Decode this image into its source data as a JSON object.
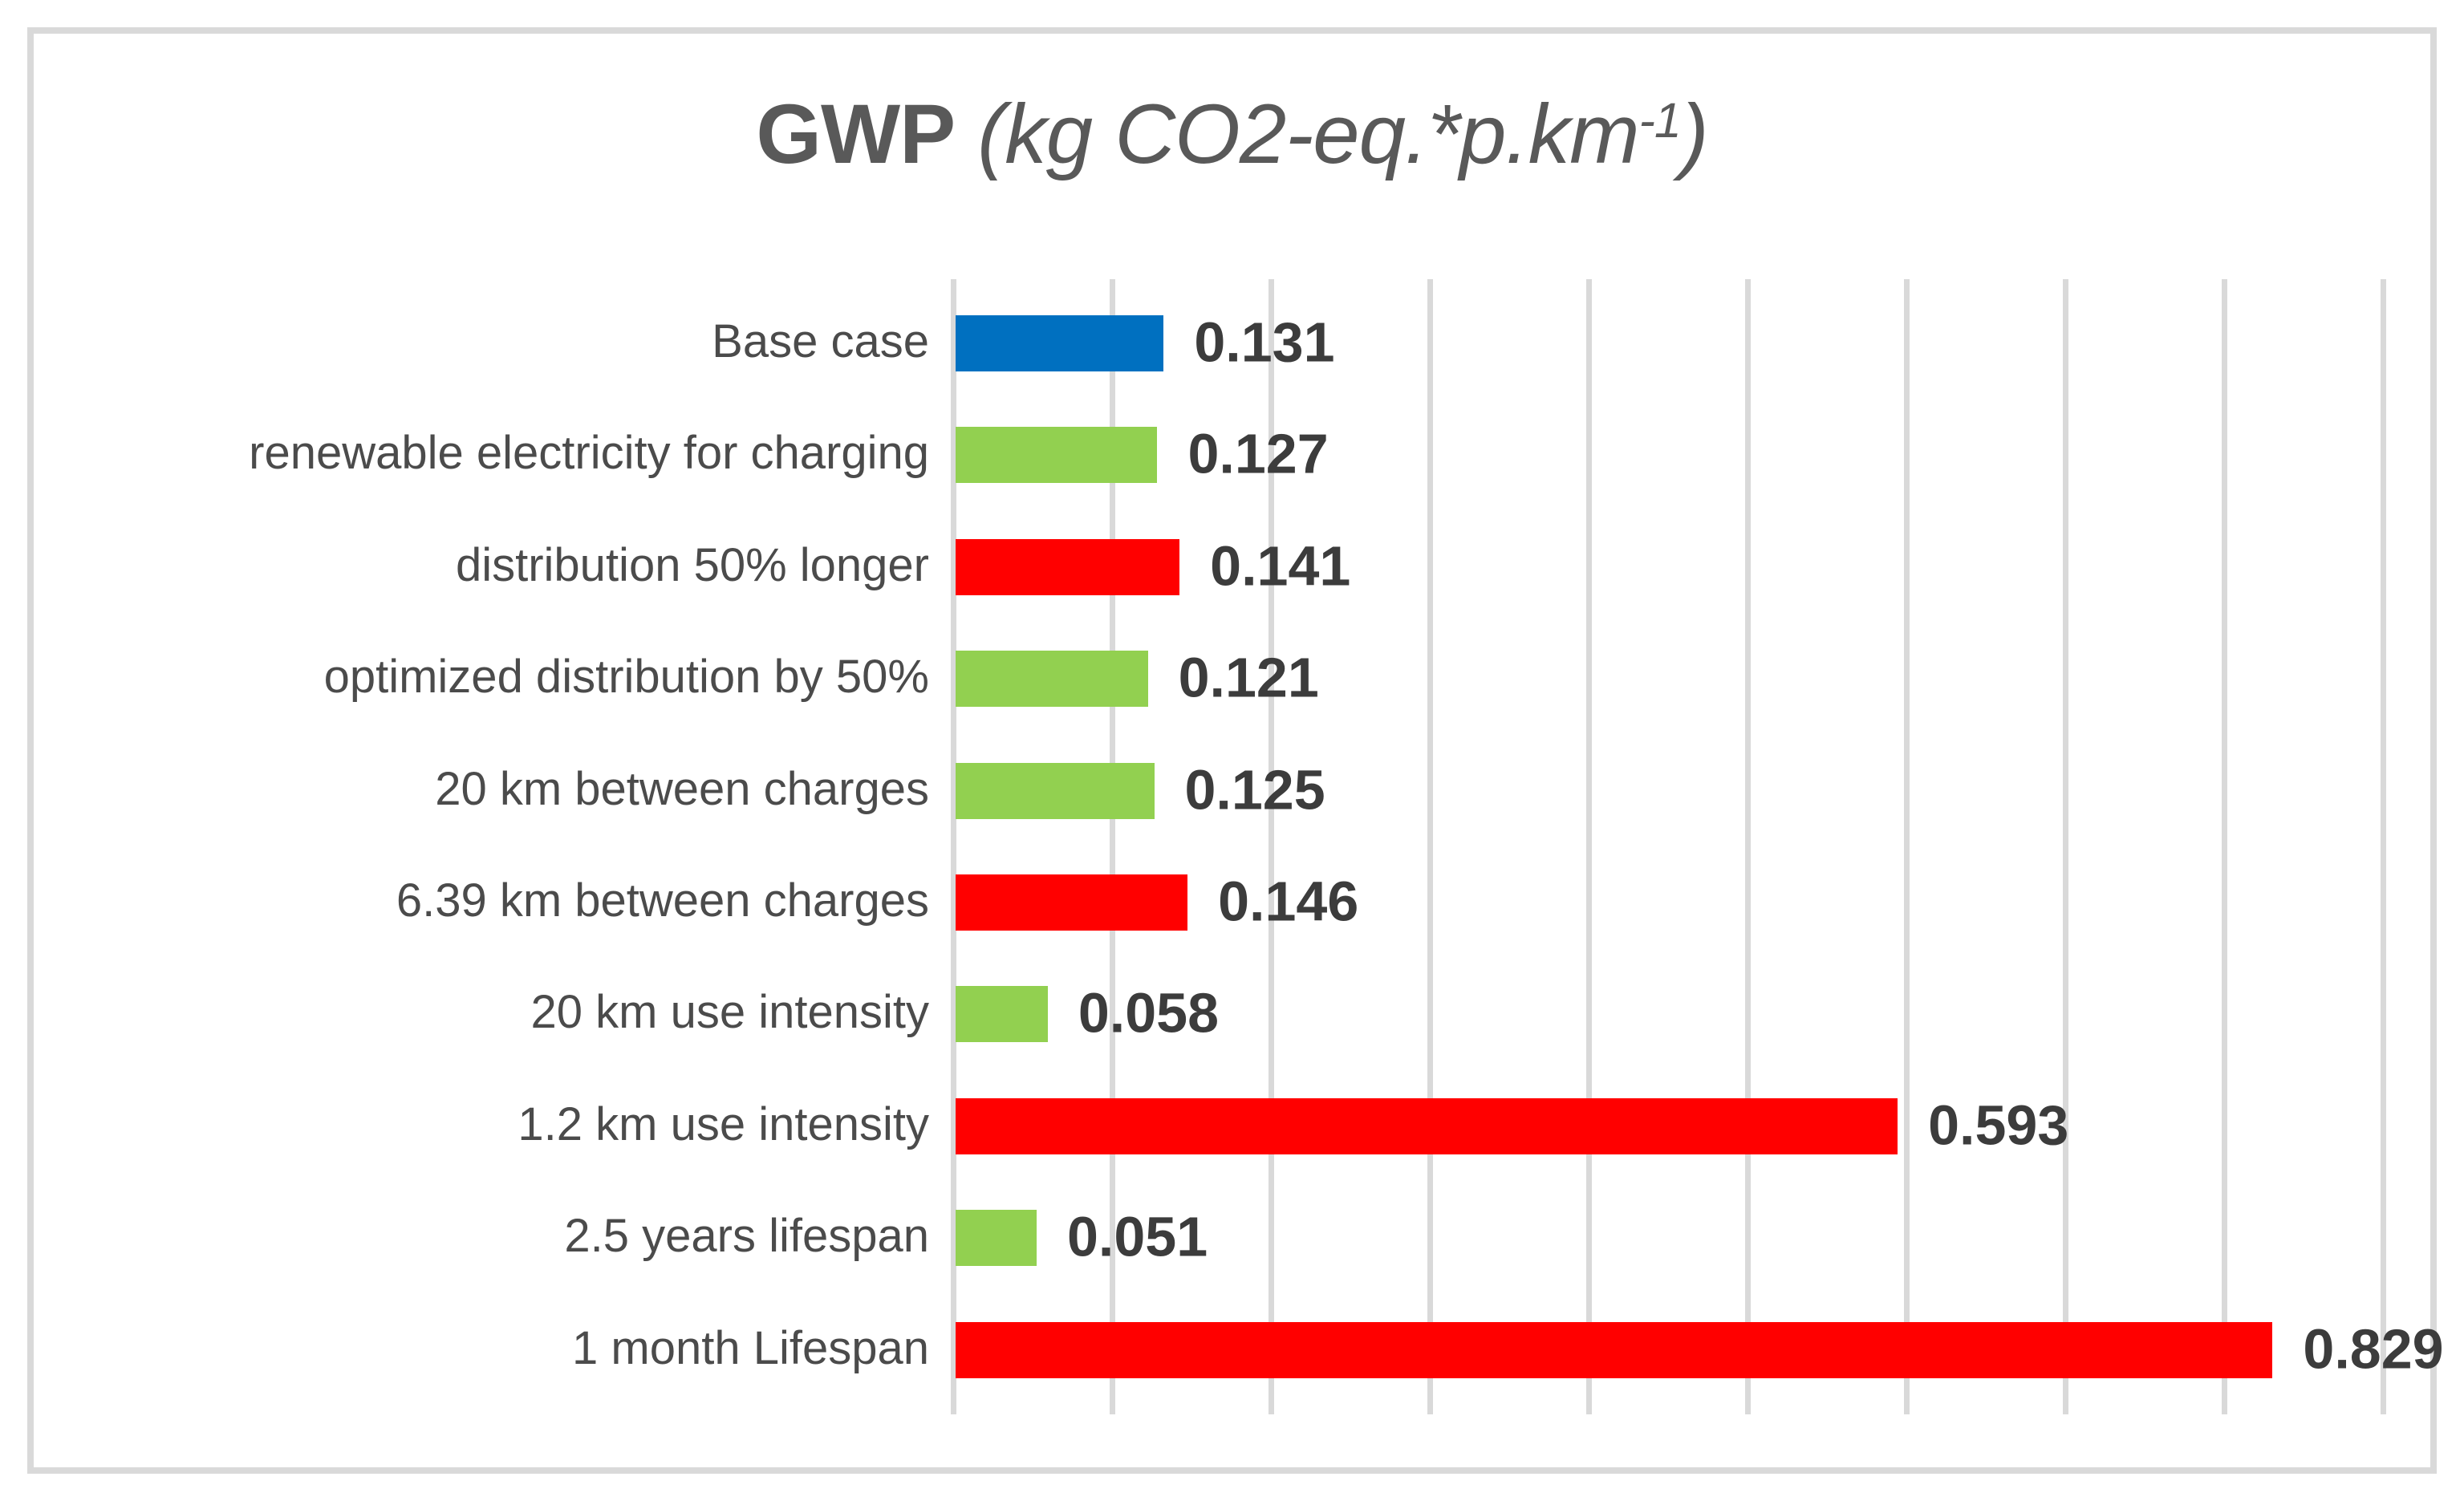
{
  "title": {
    "bold_text": "GWP",
    "italic_prefix": " (kg CO2-eq.*p.km",
    "superscript": "-1",
    "italic_suffix": ")"
  },
  "colors": {
    "base_case_blue": "#0070C0",
    "improvement_green": "#92D050",
    "worsening_red": "#FF0000",
    "gridline": "#D9D9D9",
    "chart_border": "#D9D9D9",
    "title_text": "#595959",
    "category_text": "#4B4B4B",
    "value_text": "#3C3C3C",
    "background": "#FFFFFF"
  },
  "chart_data": {
    "type": "bar",
    "orientation": "horizontal",
    "title": "GWP (kg CO2-eq.*p.km-1)",
    "xlabel": "",
    "ylabel": "",
    "xlim": [
      0,
      0.9
    ],
    "gridline_interval": 0.1,
    "grid": true,
    "legend": false,
    "categories": [
      "Base case",
      "renewable electricity for charging",
      "distribution 50% longer",
      "optimized distribution by 50%",
      "20 km between charges",
      "6.39 km between charges",
      "20 km use intensity",
      "1.2 km use intensity",
      "2.5 years lifespan",
      "1 month Lifespan"
    ],
    "values": [
      0.131,
      0.127,
      0.141,
      0.121,
      0.125,
      0.146,
      0.058,
      0.593,
      0.051,
      0.829
    ],
    "value_labels": [
      "0.131",
      "0.127",
      "0.141",
      "0.121",
      "0.125",
      "0.146",
      "0.058",
      "0.593",
      "0.051",
      "0.829"
    ],
    "bar_colors": [
      "#0070C0",
      "#92D050",
      "#FF0000",
      "#92D050",
      "#92D050",
      "#FF0000",
      "#92D050",
      "#FF0000",
      "#92D050",
      "#FF0000"
    ]
  }
}
